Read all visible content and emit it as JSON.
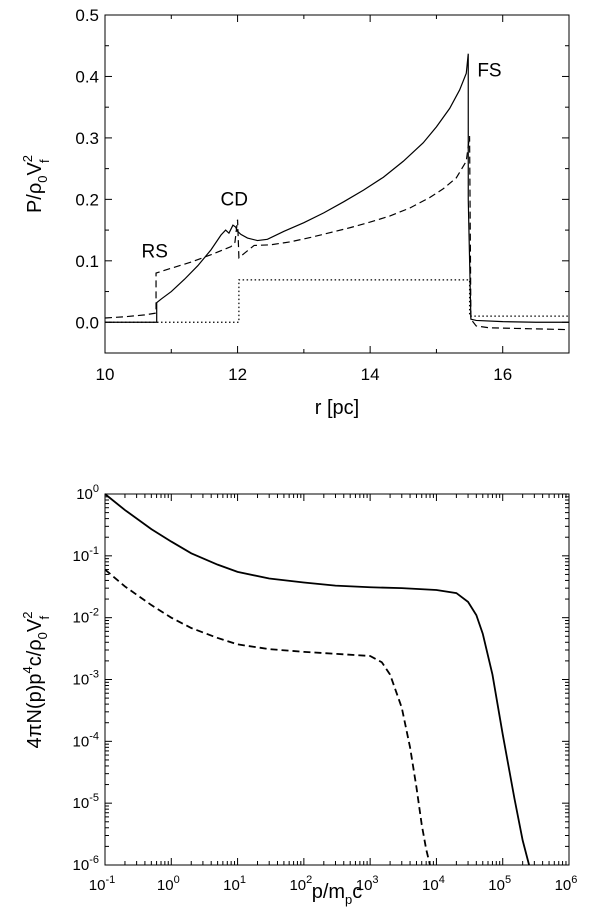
{
  "chart_data": [
    {
      "type": "line",
      "xlabel": "r [pc]",
      "ylabel": {
        "base": "P/ρ",
        "sub0": "0",
        "mid": "V",
        "sup": "2",
        "sub1": "f"
      },
      "xlim": [
        10,
        17
      ],
      "ylim": [
        -0.05,
        0.5
      ],
      "xticks": [
        10,
        12,
        14,
        16
      ],
      "xtick_labels": [
        "10",
        "12",
        "14",
        "16"
      ],
      "yticks": [
        0.0,
        0.1,
        0.2,
        0.3,
        0.4,
        0.5
      ],
      "ytick_labels": [
        "0.0",
        "0.1",
        "0.2",
        "0.3",
        "0.4",
        "0.5"
      ],
      "annotations": [
        {
          "text": "RS",
          "x": 10.75,
          "y": 0.105
        },
        {
          "text": "CD",
          "x": 11.95,
          "y": 0.19
        },
        {
          "text": "FS",
          "x": 15.8,
          "y": 0.4
        }
      ],
      "series": [
        {
          "style": "solid",
          "x": [
            10,
            10.78,
            10.78,
            10.85,
            11.0,
            11.2,
            11.4,
            11.6,
            11.75,
            11.82,
            11.87,
            11.93,
            11.97,
            12.0,
            12.05,
            12.15,
            12.3,
            12.45,
            12.7,
            13.0,
            13.3,
            13.6,
            13.9,
            14.2,
            14.5,
            14.8,
            15.0,
            15.2,
            15.35,
            15.45,
            15.48,
            15.48,
            15.52,
            15.6,
            16.0,
            16.5,
            17.0
          ],
          "y": [
            0.0,
            0.0,
            0.032,
            0.038,
            0.05,
            0.07,
            0.092,
            0.118,
            0.142,
            0.15,
            0.145,
            0.158,
            0.155,
            0.148,
            0.143,
            0.137,
            0.133,
            0.135,
            0.148,
            0.162,
            0.178,
            0.196,
            0.215,
            0.236,
            0.262,
            0.292,
            0.318,
            0.348,
            0.378,
            0.405,
            0.437,
            0.2,
            0.005,
            0.003,
            0.001,
            0.0,
            0.0
          ]
        },
        {
          "style": "dashed",
          "x": [
            10,
            10.3,
            10.6,
            10.77,
            10.77,
            11.0,
            11.3,
            11.6,
            11.9,
            11.96,
            12.0,
            12.02,
            12.1,
            12.25,
            12.5,
            12.8,
            13.1,
            13.4,
            13.7,
            14.0,
            14.3,
            14.6,
            14.9,
            15.1,
            15.3,
            15.45,
            15.5,
            15.52,
            15.6,
            15.8,
            16.2,
            16.6,
            17.0
          ],
          "y": [
            0.007,
            0.009,
            0.012,
            0.015,
            0.08,
            0.088,
            0.098,
            0.11,
            0.123,
            0.13,
            0.167,
            0.105,
            0.112,
            0.125,
            0.126,
            0.131,
            0.138,
            0.146,
            0.154,
            0.163,
            0.173,
            0.186,
            0.203,
            0.217,
            0.235,
            0.262,
            0.303,
            0.005,
            -0.006,
            -0.009,
            -0.01,
            -0.011,
            -0.012
          ]
        },
        {
          "style": "dotted",
          "x": [
            10,
            12.02,
            12.02,
            15.5,
            15.5,
            17.0
          ],
          "y": [
            0.0,
            0.0,
            0.069,
            0.069,
            0.01,
            0.01
          ]
        }
      ]
    },
    {
      "type": "line",
      "xlabel": {
        "base": "p/m",
        "sub": "p",
        "tail": "c"
      },
      "ylabel": {
        "lead": "4",
        "pi": "π",
        "a": "N(p)p",
        "sup4": "4",
        "b": "c/ρ",
        "sub0": "0",
        "mid": "V",
        "sup2": "2",
        "subf": "f"
      },
      "xscale": "log",
      "yscale": "log",
      "xlim": [
        0.1,
        1000000
      ],
      "ylim": [
        1e-06,
        1
      ],
      "xtick_exponents": [
        "-1",
        "0",
        "1",
        "2",
        "3",
        "4",
        "5",
        "6"
      ],
      "ytick_exponents": [
        "0",
        "-1",
        "-2",
        "-3",
        "-4",
        "-5",
        "-6"
      ],
      "tick_base": "10",
      "series": [
        {
          "style": "solid",
          "x": [
            0.1,
            0.2,
            0.5,
            1,
            2,
            5,
            10,
            30,
            100,
            300,
            1000,
            3000,
            10000,
            20000,
            30000,
            40000,
            50000,
            70000,
            100000,
            150000,
            200000,
            250000
          ],
          "y": [
            1.0,
            0.55,
            0.27,
            0.17,
            0.11,
            0.072,
            0.055,
            0.043,
            0.037,
            0.033,
            0.031,
            0.03,
            0.028,
            0.025,
            0.018,
            0.011,
            0.0055,
            0.0012,
            0.00013,
            1.2e-05,
            2.5e-06,
            1e-06
          ]
        },
        {
          "style": "dashed",
          "x": [
            0.1,
            0.2,
            0.5,
            1,
            2,
            5,
            10,
            30,
            100,
            300,
            1000,
            1500,
            2000,
            3000,
            4000,
            5000,
            6000,
            7000,
            8000
          ],
          "y": [
            0.06,
            0.032,
            0.016,
            0.01,
            0.0068,
            0.0047,
            0.0037,
            0.0031,
            0.0028,
            0.0026,
            0.0024,
            0.0019,
            0.0012,
            0.00035,
            8e-05,
            1.8e-05,
            4.5e-06,
            1.8e-06,
            1e-06
          ]
        }
      ]
    }
  ]
}
